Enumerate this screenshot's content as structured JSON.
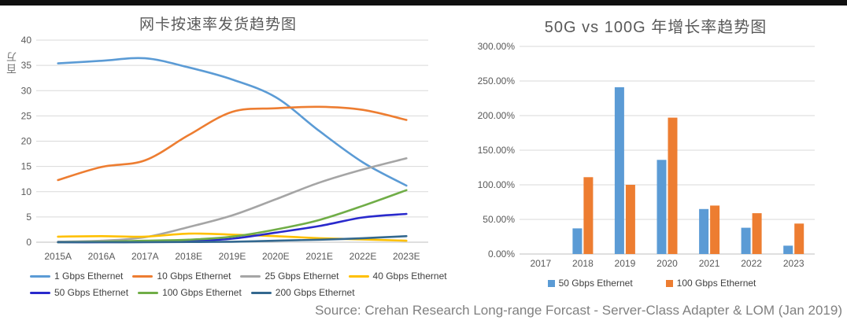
{
  "page": {
    "source_note": "Source: Crehan Research Long-range Forcast - Server-Class Adapter & LOM (Jan 2019)"
  },
  "colors": {
    "series_light_blue": "#5B9BD5",
    "series_orange": "#ED7D31",
    "series_gray": "#A5A5A5",
    "series_yellow": "#FFC000",
    "series_royal_blue": "#2929CC",
    "series_green": "#70AD47",
    "series_steel_blue": "#33688F",
    "title_text": "#595959",
    "axis_text": "#595959",
    "legend_text": "#404040",
    "gridline": "#D9D9D9",
    "axis_line": "#BFBFBF",
    "topbar": "#101010"
  },
  "chart_data": [
    {
      "type": "line",
      "title": "网卡按速率发货趋势图",
      "ylabel": "百万",
      "xlabel": "",
      "categories": [
        "2015A",
        "2016A",
        "2017A",
        "2018E",
        "2019E",
        "2020E",
        "2021E",
        "2022E",
        "2023E"
      ],
      "series": [
        {
          "name": "1 Gbps Ethernet",
          "color": "#5B9BD5",
          "values": [
            35.4,
            35.9,
            36.4,
            34.6,
            32.2,
            28.7,
            22.0,
            15.8,
            11.2
          ]
        },
        {
          "name": "10 Gbps Ethernet",
          "color": "#ED7D31",
          "values": [
            12.3,
            14.9,
            16.2,
            21.2,
            25.8,
            26.5,
            26.8,
            26.2,
            24.2
          ]
        },
        {
          "name": "25 Gbps Ethernet",
          "color": "#A5A5A5",
          "values": [
            0.1,
            0.3,
            1.0,
            3.0,
            5.3,
            8.5,
            11.8,
            14.4,
            16.6
          ]
        },
        {
          "name": "40 Gbps Ethernet",
          "color": "#FFC000",
          "values": [
            1.1,
            1.2,
            1.1,
            1.7,
            1.5,
            1.2,
            0.8,
            0.55,
            0.3
          ]
        },
        {
          "name": "50 Gbps Ethernet",
          "color": "#2929CC",
          "values": [
            0.0,
            0.0,
            0.05,
            0.2,
            0.7,
            1.9,
            3.2,
            4.9,
            5.6
          ]
        },
        {
          "name": "100 Gbps Ethernet",
          "color": "#70AD47",
          "values": [
            0.0,
            0.1,
            0.3,
            0.5,
            1.1,
            2.5,
            4.4,
            7.2,
            10.3
          ]
        },
        {
          "name": "200 Gbps Ethernet",
          "color": "#33688F",
          "values": [
            0.0,
            0.0,
            0.0,
            0.05,
            0.1,
            0.3,
            0.5,
            0.8,
            1.2
          ]
        }
      ],
      "ylim": [
        0,
        40
      ],
      "ytick_step": 5,
      "grid": true,
      "smooth_lines": true,
      "legend_position": "bottom"
    },
    {
      "type": "bar",
      "title": "50G vs 100G 年增长率趋势图",
      "xlabel": "",
      "ylabel": "",
      "categories": [
        "2017",
        "2018",
        "2019",
        "2020",
        "2021",
        "2022",
        "2023"
      ],
      "series": [
        {
          "name": "50 Gbps Ethernet",
          "color": "#5B9BD5",
          "values": [
            0,
            37,
            241,
            136,
            65,
            38,
            12
          ]
        },
        {
          "name": "100 Gbps Ethernet",
          "color": "#ED7D31",
          "values": [
            0,
            111,
            100,
            197,
            70,
            59,
            44
          ]
        }
      ],
      "ylim": [
        0,
        300
      ],
      "ytick_step": 50,
      "ytick_format": "percent2",
      "grid": true,
      "legend_position": "bottom"
    }
  ]
}
